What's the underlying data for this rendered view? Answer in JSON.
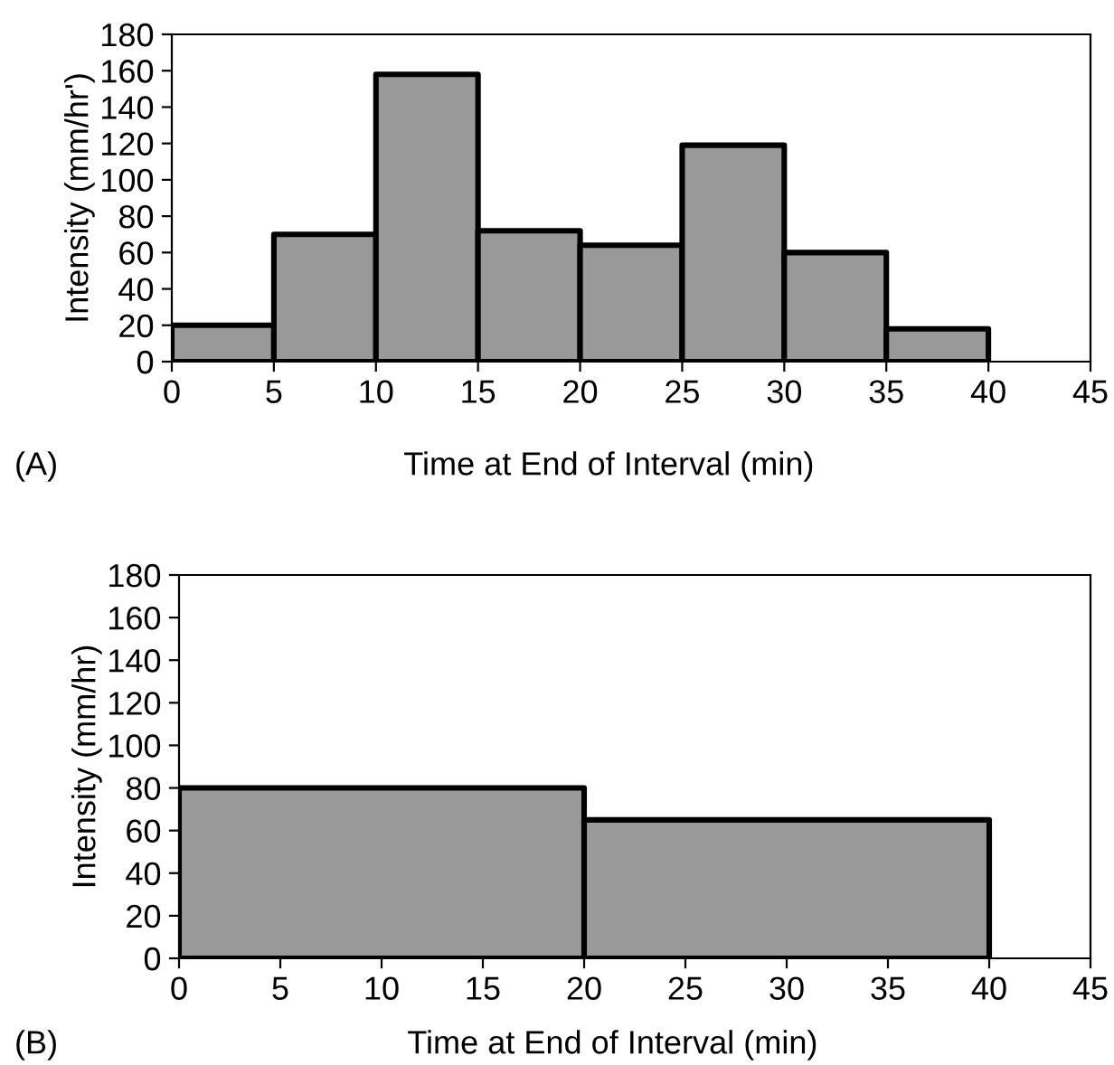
{
  "chart_data": [
    {
      "type": "histogram",
      "bins": [
        0,
        5,
        10,
        15,
        20,
        25,
        30,
        35,
        40
      ],
      "values": [
        20,
        70,
        158,
        72,
        64,
        119,
        60,
        18
      ],
      "color": "#999999",
      "xlabel": "Time at End of Interval (min)",
      "ylabel": "Intensity (mm/hr')",
      "xlim": [
        0,
        45
      ],
      "xticks": [
        0,
        5,
        10,
        15,
        20,
        25,
        30,
        35,
        40,
        45
      ],
      "ylim": [
        0,
        180
      ],
      "yticks": [
        0,
        20,
        40,
        60,
        80,
        100,
        120,
        140,
        160,
        180
      ],
      "grid": false,
      "annotations": [
        "(A)"
      ]
    },
    {
      "type": "histogram",
      "bins": [
        0,
        20,
        40
      ],
      "values": [
        80,
        65
      ],
      "color": "#999999",
      "xlabel": "Time at End of Interval (min)",
      "ylabel": "Intensity (mm/hr)",
      "xlim": [
        0,
        45
      ],
      "xticks": [
        0,
        5,
        10,
        15,
        20,
        25,
        30,
        35,
        40,
        45
      ],
      "ylim": [
        0,
        180
      ],
      "yticks": [
        0,
        20,
        40,
        60,
        80,
        100,
        120,
        140,
        160,
        180
      ],
      "grid": false,
      "annotations": [
        "(B)"
      ]
    }
  ]
}
